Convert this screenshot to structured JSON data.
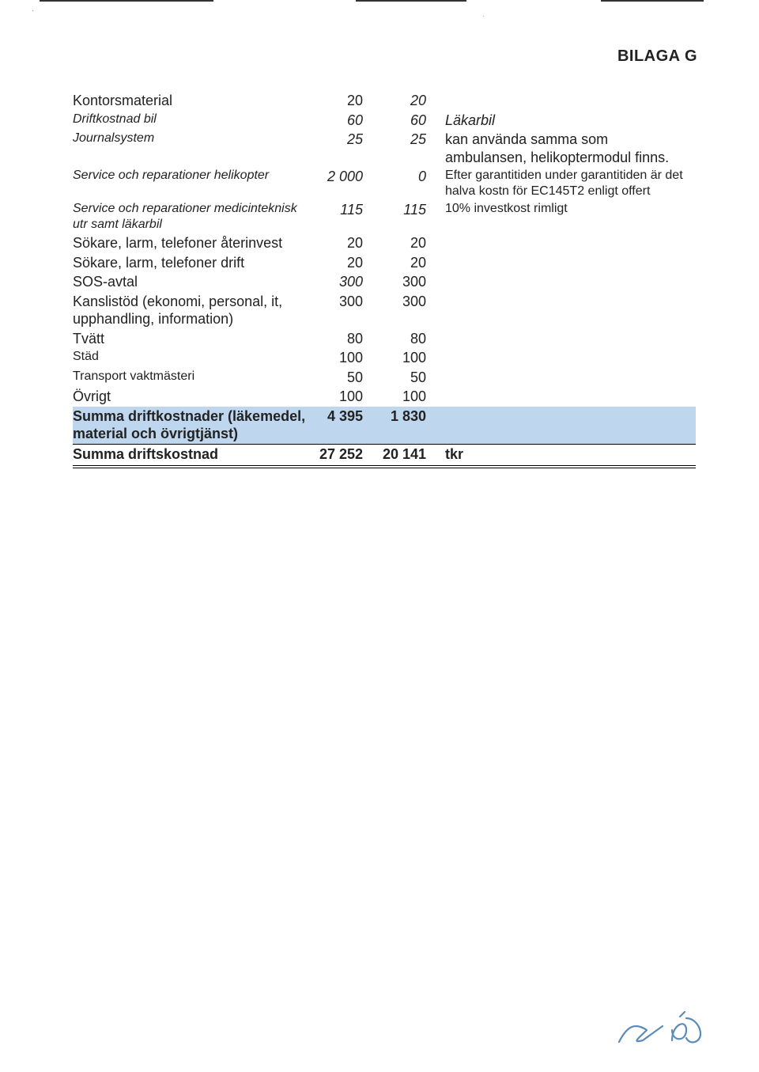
{
  "header": {
    "title": "BILAGA G"
  },
  "colors": {
    "highlight_bg": "#bed7ee",
    "text": "#222222",
    "signature": "#5b8bb8"
  },
  "table": {
    "rows": [
      {
        "label": "Kontorsmaterial",
        "label_style": "",
        "c1": "20",
        "c1_style": "",
        "c2": "20",
        "c2_style": "italic",
        "note": ""
      },
      {
        "label": "Driftkostnad bil",
        "label_style": "italic small",
        "c1": "60",
        "c1_style": "italic",
        "c2": "60",
        "c2_style": "italic",
        "note": "Läkarbil",
        "note_style": "italic"
      },
      {
        "label": "Journalsystem",
        "label_style": "italic small",
        "c1": "25",
        "c1_style": "italic",
        "c2": "25",
        "c2_style": "italic",
        "note": "kan använda samma som ambulansen, helikoptermodul finns.",
        "note_style": ""
      },
      {
        "label": "Service och reparationer helikopter",
        "label_style": "italic small",
        "c1": "2 000",
        "c1_style": "italic",
        "c2": "0",
        "c2_style": "italic",
        "note": "Efter garantitiden under garantitiden är det halva kostn för EC145T2 enligt offert",
        "note_style": "small"
      },
      {
        "label": "Service och reparationer medicinteknisk utr samt läkarbil",
        "label_style": "italic small",
        "c1": "115",
        "c1_style": "italic",
        "c2": "115",
        "c2_style": "italic",
        "note": "10% investkost rimligt",
        "note_style": "small"
      },
      {
        "label": "Sökare, larm, telefoner återinvest",
        "label_style": "",
        "c1": "20",
        "c1_style": "",
        "c2": "20",
        "c2_style": "",
        "note": ""
      },
      {
        "label": "Sökare, larm, telefoner drift",
        "label_style": "",
        "c1": "20",
        "c1_style": "",
        "c2": "20",
        "c2_style": "",
        "note": ""
      },
      {
        "label": "SOS-avtal",
        "label_style": "",
        "c1": "300",
        "c1_style": "italic",
        "c2": "300",
        "c2_style": "",
        "note": ""
      },
      {
        "label": "Kanslistöd (ekonomi, personal, it, upphandling, information)",
        "label_style": "",
        "c1": "300",
        "c1_style": "",
        "c2": "300",
        "c2_style": "",
        "note": ""
      },
      {
        "label": "Tvätt",
        "label_style": "",
        "c1": "80",
        "c1_style": "",
        "c2": "80",
        "c2_style": "",
        "note": ""
      },
      {
        "label": "Städ",
        "label_style": "small",
        "c1": "100",
        "c1_style": "",
        "c2": "100",
        "c2_style": "",
        "note": ""
      },
      {
        "label": "Transport vaktmästeri",
        "label_style": "small",
        "c1": "50",
        "c1_style": "",
        "c2": "50",
        "c2_style": "",
        "note": ""
      },
      {
        "label": "Övrigt",
        "label_style": "",
        "c1": "100",
        "c1_style": "",
        "c2": "100",
        "c2_style": "",
        "note": ""
      }
    ],
    "subtotal": {
      "label": "Summa driftkostnader (läkemedel, material och övrigtjänst)",
      "c1": "4 395",
      "c2": "1 830"
    },
    "total": {
      "label": "Summa driftskostnad",
      "c1": "27 252",
      "c2": "20 141",
      "unit": "tkr"
    }
  }
}
